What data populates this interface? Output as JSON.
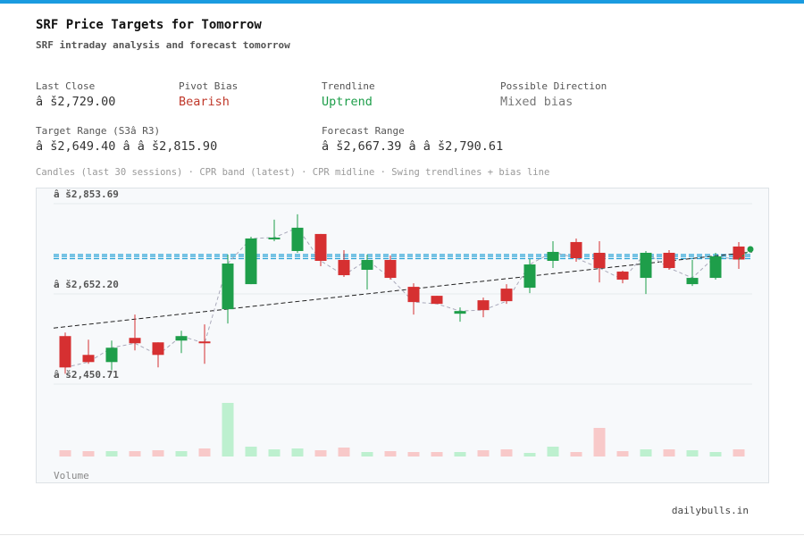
{
  "header": {
    "title": "SRF Price Targets for Tomorrow",
    "subtitle": "SRF intraday analysis and forecast tomorrow"
  },
  "stats": [
    {
      "label": "Last Close",
      "value": "â š2,729.00",
      "color": "#333333"
    },
    {
      "label": "Pivot Bias",
      "value": "Bearish",
      "color": "#c0392b"
    },
    {
      "label": "Trendline",
      "value": "Uptrend",
      "color": "#1e9e4a"
    },
    {
      "label": "Possible Direction",
      "value": "Mixed bias",
      "color": "#777777"
    },
    {
      "label": "Target Range (S3â R3)",
      "value": "â š2,649.40 â   â š2,815.90",
      "color": "#333333"
    },
    {
      "label": "Forecast Range",
      "value": "â š2,667.39 â   â š2,790.61",
      "color": "#333333"
    }
  ],
  "caption": "Candles (last 30 sessions) · CPR band (latest) · CPR midline · Swing trendlines + bias line",
  "footer": "dailybulls.in",
  "chart_data": {
    "type": "candlestick",
    "up_color": "#1e9e4a",
    "down_color": "#d63031",
    "up_volume_color": "#bdf0cf",
    "down_volume_color": "#f8c9c9",
    "ylim": [
      2450.71,
      2853.69
    ],
    "yticks": [
      {
        "value": 2853.69,
        "label": "â š2,853.69"
      },
      {
        "value": 2652.2,
        "label": "â š2,652.20"
      },
      {
        "value": 2450.71,
        "label": "â š2,450.71"
      }
    ],
    "grid": true,
    "open": [
      2558,
      2516,
      2500,
      2554,
      2544,
      2548,
      2546,
      2618,
      2674,
      2774,
      2748,
      2786,
      2728,
      2706,
      2728,
      2668,
      2648,
      2608,
      2638,
      2664,
      2666,
      2726,
      2768,
      2744,
      2702,
      2688,
      2744,
      2674,
      2688,
      2758
    ],
    "high": [
      2566,
      2550,
      2548,
      2606,
      2544,
      2570,
      2584,
      2740,
      2780,
      2818,
      2830,
      2786,
      2750,
      2740,
      2738,
      2676,
      2648,
      2622,
      2644,
      2674,
      2730,
      2770,
      2776,
      2770,
      2704,
      2748,
      2750,
      2728,
      2744,
      2768
    ],
    "low": [
      2474,
      2496,
      2482,
      2526,
      2488,
      2520,
      2496,
      2586,
      2674,
      2770,
      2744,
      2714,
      2690,
      2662,
      2684,
      2606,
      2630,
      2590,
      2600,
      2630,
      2654,
      2710,
      2724,
      2678,
      2676,
      2652,
      2706,
      2670,
      2684,
      2708
    ],
    "close": [
      2488,
      2500,
      2532,
      2542,
      2516,
      2558,
      2542,
      2720,
      2776,
      2778,
      2800,
      2726,
      2694,
      2728,
      2688,
      2634,
      2630,
      2614,
      2616,
      2636,
      2718,
      2746,
      2732,
      2710,
      2684,
      2744,
      2710,
      2688,
      2736,
      2729
    ],
    "volume": [
      7,
      6,
      6,
      6,
      7,
      6,
      9,
      60,
      11,
      8,
      9,
      7,
      10,
      5,
      6,
      5,
      5,
      5,
      7,
      8,
      4,
      11,
      5,
      32,
      6,
      8,
      8,
      7,
      5,
      8
    ],
    "volume_label": "Volume",
    "cpr": {
      "tc": 2740,
      "pivot": 2736,
      "bc": 2731,
      "color": "#2aa3d6"
    },
    "trendline": {
      "start": 2576,
      "end": 2746
    },
    "bias_target": 2752
  }
}
